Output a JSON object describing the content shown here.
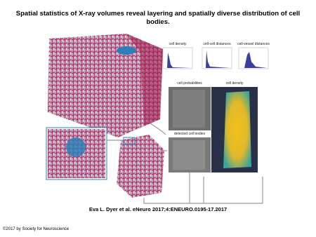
{
  "header": {
    "title": "Spatial statistics of X-ray volumes reveal layering and spatially diverse distribution of cell bodies."
  },
  "figure": {
    "panels": {
      "hist_1": "cell density",
      "hist_2": "cell-cell distances",
      "hist_3": "cell-vessel distances",
      "probabilities": "cell probabilities",
      "density": "cell density",
      "detected": "detected cell bodies"
    }
  },
  "caption": "Eva L. Dyer et al. eNeuro 2017;4:ENEURO.0195-17.2017",
  "footer": "©2017 by Society for Neuroscience"
}
